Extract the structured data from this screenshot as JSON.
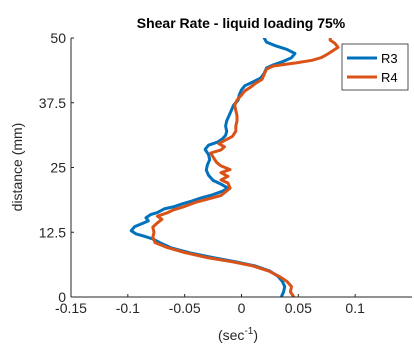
{
  "chart_data": {
    "type": "line",
    "title": "Shear Rate - liquid loading 75%",
    "xlabel_main": "(sec",
    "xlabel_sup": "-1",
    "xlabel_tail": ")",
    "ylabel": "distance (mm)",
    "xlim": [
      -0.15,
      0.15
    ],
    "ylim": [
      0,
      50
    ],
    "xticks": [
      -0.15,
      -0.1,
      -0.05,
      0,
      0.05,
      0.1
    ],
    "xtick_labels": [
      "-0.15",
      "-0.1",
      "-0.05",
      "0",
      "0.05",
      "0.1"
    ],
    "yticks": [
      0,
      12.5,
      25,
      37.5,
      50
    ],
    "ytick_labels": [
      "0",
      "12.5",
      "25",
      "37.5",
      "50"
    ],
    "grid": false,
    "legend_position": "top-right",
    "series": [
      {
        "name": "R3",
        "color": "#0072BD",
        "points": [
          [
            0.035,
            0
          ],
          [
            0.037,
            1
          ],
          [
            0.038,
            2
          ],
          [
            0.036,
            3
          ],
          [
            0.032,
            4
          ],
          [
            0.025,
            5
          ],
          [
            0.012,
            6
          ],
          [
            -0.005,
            6.8
          ],
          [
            -0.025,
            7.6
          ],
          [
            -0.045,
            8.5
          ],
          [
            -0.062,
            9.5
          ],
          [
            -0.072,
            10.5
          ],
          [
            -0.078,
            11.2
          ],
          [
            -0.085,
            11.7
          ],
          [
            -0.093,
            12.2
          ],
          [
            -0.097,
            12.8
          ],
          [
            -0.094,
            13.6
          ],
          [
            -0.087,
            14.2
          ],
          [
            -0.082,
            14.7
          ],
          [
            -0.084,
            15.3
          ],
          [
            -0.08,
            15.9
          ],
          [
            -0.074,
            16.3
          ],
          [
            -0.068,
            17.0
          ],
          [
            -0.06,
            17.4
          ],
          [
            -0.052,
            18.0
          ],
          [
            -0.044,
            18.5
          ],
          [
            -0.036,
            19.1
          ],
          [
            -0.026,
            19.7
          ],
          [
            -0.017,
            20.4
          ],
          [
            -0.012,
            21.0
          ],
          [
            -0.018,
            21.8
          ],
          [
            -0.025,
            22.5
          ],
          [
            -0.029,
            23.5
          ],
          [
            -0.031,
            24.5
          ],
          [
            -0.03,
            25.5
          ],
          [
            -0.028,
            26.5
          ],
          [
            -0.029,
            27.5
          ],
          [
            -0.032,
            28.5
          ],
          [
            -0.029,
            29.3
          ],
          [
            -0.021,
            29.9
          ],
          [
            -0.017,
            30.5
          ],
          [
            -0.014,
            31.2
          ],
          [
            -0.013,
            32.0
          ],
          [
            -0.014,
            33.0
          ],
          [
            -0.013,
            34.0
          ],
          [
            -0.011,
            35.0
          ],
          [
            -0.009,
            36.0
          ],
          [
            -0.007,
            37.0
          ],
          [
            -0.003,
            38.0
          ],
          [
            -0.002,
            39.0
          ],
          [
            0.0,
            40.0
          ],
          [
            0.003,
            40.8
          ],
          [
            0.01,
            41.5
          ],
          [
            0.017,
            42.3
          ],
          [
            0.02,
            43.2
          ],
          [
            0.022,
            44.2
          ],
          [
            0.028,
            44.8
          ],
          [
            0.037,
            45.5
          ],
          [
            0.044,
            46.2
          ],
          [
            0.047,
            47.0
          ],
          [
            0.04,
            47.8
          ],
          [
            0.03,
            48.5
          ],
          [
            0.022,
            49.2
          ],
          [
            0.02,
            50
          ]
        ]
      },
      {
        "name": "R4",
        "color": "#D95319",
        "points": [
          [
            0.046,
            0
          ],
          [
            0.043,
            1
          ],
          [
            0.044,
            2
          ],
          [
            0.04,
            3
          ],
          [
            0.033,
            4
          ],
          [
            0.024,
            5
          ],
          [
            0.01,
            6
          ],
          [
            -0.008,
            6.8
          ],
          [
            -0.03,
            7.6
          ],
          [
            -0.05,
            8.6
          ],
          [
            -0.066,
            9.6
          ],
          [
            -0.076,
            10.5
          ],
          [
            -0.078,
            11.5
          ],
          [
            -0.077,
            12.5
          ],
          [
            -0.078,
            13.5
          ],
          [
            -0.074,
            14.3
          ],
          [
            -0.07,
            15.0
          ],
          [
            -0.074,
            15.6
          ],
          [
            -0.066,
            16.2
          ],
          [
            -0.06,
            16.8
          ],
          [
            -0.05,
            17.5
          ],
          [
            -0.04,
            18.3
          ],
          [
            -0.028,
            19.0
          ],
          [
            -0.018,
            19.6
          ],
          [
            -0.014,
            20.3
          ],
          [
            -0.01,
            21.0
          ],
          [
            -0.012,
            22.0
          ],
          [
            -0.018,
            22.6
          ],
          [
            -0.012,
            23.3
          ],
          [
            -0.018,
            24.0
          ],
          [
            -0.01,
            24.6
          ],
          [
            -0.018,
            25.3
          ],
          [
            -0.022,
            26.0
          ],
          [
            -0.025,
            27.0
          ],
          [
            -0.027,
            27.8
          ],
          [
            -0.018,
            28.4
          ],
          [
            -0.015,
            29.0
          ],
          [
            -0.02,
            29.6
          ],
          [
            -0.015,
            30.2
          ],
          [
            -0.008,
            31.0
          ],
          [
            -0.005,
            32.0
          ],
          [
            -0.005,
            33.0
          ],
          [
            -0.004,
            34.0
          ],
          [
            -0.004,
            35.0
          ],
          [
            -0.005,
            36.0
          ],
          [
            -0.006,
            37.0
          ],
          [
            -0.004,
            38.0
          ],
          [
            0.0,
            39.0
          ],
          [
            0.003,
            39.8
          ],
          [
            0.008,
            40.5
          ],
          [
            0.012,
            41.2
          ],
          [
            0.018,
            42.0
          ],
          [
            0.02,
            43.0
          ],
          [
            0.022,
            44.0
          ],
          [
            0.028,
            44.6
          ],
          [
            0.048,
            45.2
          ],
          [
            0.062,
            45.7
          ],
          [
            0.07,
            46.2
          ],
          [
            0.075,
            46.8
          ],
          [
            0.08,
            47.5
          ],
          [
            0.085,
            48.2
          ],
          [
            0.082,
            49.0
          ],
          [
            0.078,
            49.6
          ],
          [
            0.078,
            50
          ]
        ]
      }
    ]
  }
}
